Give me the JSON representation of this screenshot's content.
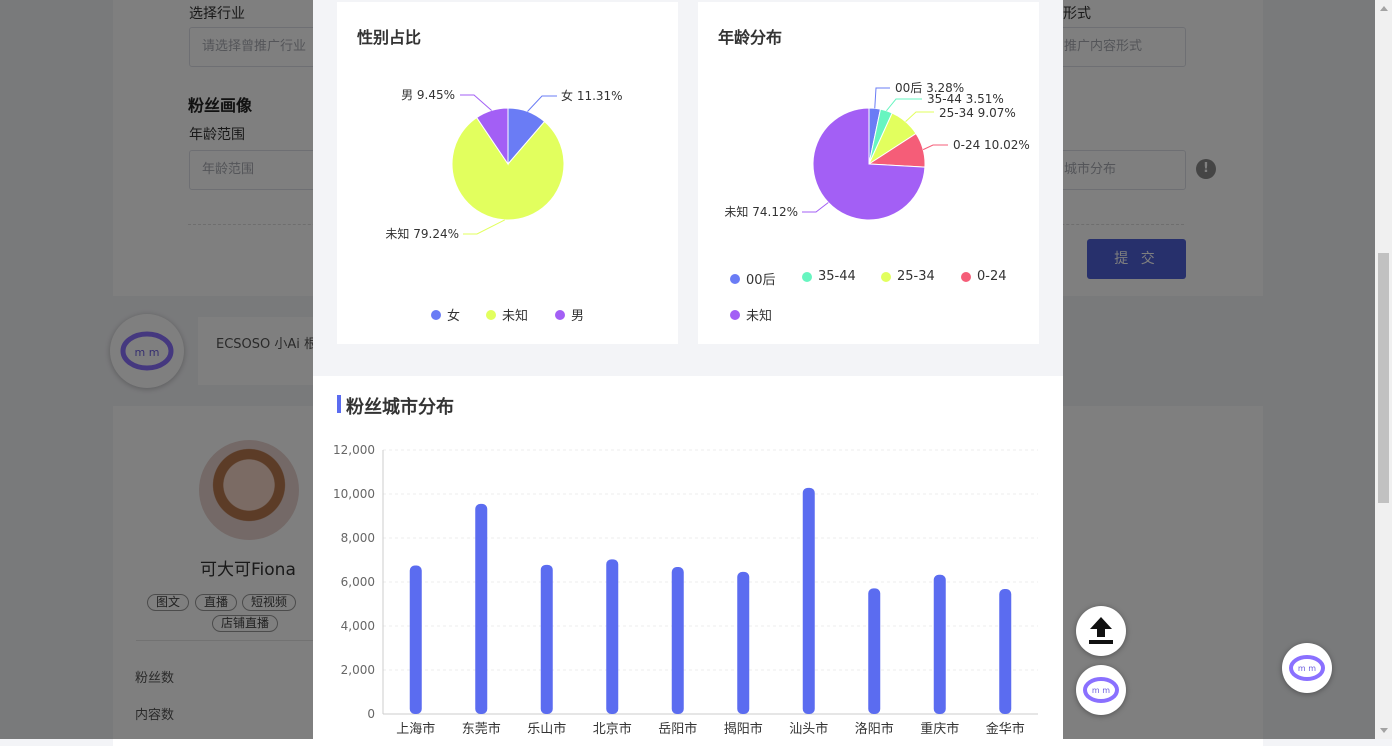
{
  "background": {
    "industry_label": "选择行业",
    "industry_placeholder": "请选择曾推广行业",
    "content_form_label": "形式",
    "content_form_placeholder": "推广内容形式",
    "fan_profile_title": "粉丝画像",
    "age_range_label": "年龄范围",
    "age_range_placeholder": "年龄范围",
    "city_dist_placeholder": "城市分布",
    "submit_label": "提 交",
    "chat_text": "ECSOSO 小Ai 根",
    "influencer_name": "可大可Fiona",
    "tags": [
      "图文",
      "直播",
      "短视频",
      "店铺直播"
    ],
    "fans_label": "粉丝数",
    "content_count_label": "内容数"
  },
  "gender_card": {
    "title": "性别占比",
    "legend": [
      "女",
      "未知",
      "男"
    ],
    "colors": [
      "#6a7cf5",
      "#e2ff5e",
      "#a35ff5"
    ]
  },
  "age_card": {
    "title": "年龄分布",
    "legend": [
      "00后",
      "35-44",
      "25-34",
      "0-24",
      "未知"
    ],
    "colors": [
      "#6a7cf5",
      "#67f5c0",
      "#e2ff5e",
      "#f55d78",
      "#a35ff5"
    ]
  },
  "city_card": {
    "title": "粉丝城市分布",
    "bar_color": "#5b6cf0"
  },
  "chart_data": [
    {
      "type": "pie",
      "title": "性别占比",
      "labels": [
        "女",
        "未知",
        "男"
      ],
      "values": [
        11.31,
        79.24,
        9.45
      ],
      "value_labels": [
        "女 11.31%",
        "未知 79.24%",
        "男 9.45%"
      ]
    },
    {
      "type": "pie",
      "title": "年龄分布",
      "labels": [
        "00后",
        "35-44",
        "25-34",
        "0-24",
        "未知"
      ],
      "values": [
        3.28,
        3.51,
        9.07,
        10.02,
        74.12
      ],
      "value_labels": [
        "00后 3.28%",
        "35-44 3.51%",
        "25-34 9.07%",
        "0-24 10.02%",
        "未知 74.12%"
      ]
    },
    {
      "type": "bar",
      "title": "粉丝城市分布",
      "categories": [
        "上海市",
        "东莞市",
        "乐山市",
        "北京市",
        "岳阳市",
        "揭阳市",
        "汕头市",
        "洛阳市",
        "重庆市",
        "金华市"
      ],
      "values": [
        6750,
        9550,
        6780,
        7030,
        6680,
        6460,
        10280,
        5710,
        6330,
        5680
      ],
      "ylim": [
        0,
        12000
      ],
      "yticks": [
        "0",
        "2,000",
        "4,000",
        "6,000",
        "8,000",
        "10,000",
        "12,000"
      ],
      "grid": true
    }
  ]
}
